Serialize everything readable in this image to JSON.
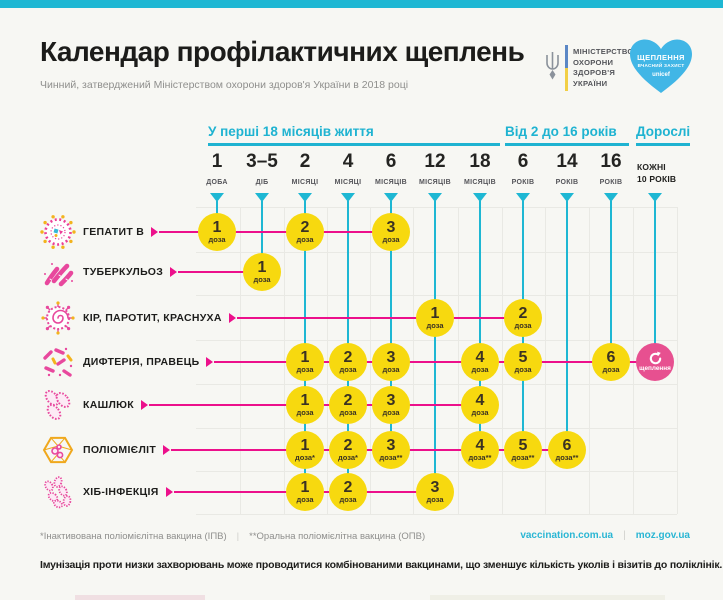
{
  "colors": {
    "cyan": "#1eb7d3",
    "magenta": "#ec108b",
    "dose_yellow": "#f7d90f",
    "booster_pink": "#e75090",
    "heart_blue": "#41b6e6"
  },
  "header": {
    "title": "Календар профілактичних щеплень",
    "subtitle": "Чинний, затверджений Міністерством охорони здоров'я України в 2018 році",
    "moh_lines": [
      "МІНІСТЕРСТВО",
      "ОХОРОНИ",
      "ЗДОРОВ'Я",
      "УКРАЇНИ"
    ],
    "heart": {
      "title": "ЩЕПЛЕННЯ",
      "subtitle": "ВЧАСНИЙ ЗАХИСТ",
      "brand": "unicef"
    }
  },
  "timeline": {
    "groups": [
      {
        "label": "У перші 18 місяців життя"
      },
      {
        "label": "Від 2 до 16 років"
      },
      {
        "label": "Дорослі"
      }
    ],
    "columns": [
      {
        "value": "1",
        "unit": "ДОБА"
      },
      {
        "value": "3–5",
        "unit": "ДІБ"
      },
      {
        "value": "2",
        "unit": "МІСЯЦІ"
      },
      {
        "value": "4",
        "unit": "МІСЯЦІ"
      },
      {
        "value": "6",
        "unit": "МІСЯЦІВ"
      },
      {
        "value": "12",
        "unit": "МІСЯЦІВ"
      },
      {
        "value": "18",
        "unit": "МІСЯЦІВ"
      },
      {
        "value": "6",
        "unit": "РОКІВ"
      },
      {
        "value": "14",
        "unit": "РОКІВ"
      },
      {
        "value": "16",
        "unit": "РОКІВ"
      },
      {
        "value": "КОЖНІ",
        "unit": "10 РОКІВ",
        "style": "text"
      }
    ]
  },
  "rows": [
    {
      "disease": "ГЕПАТИТ B",
      "icon": "hepatitis-b-virus-icon",
      "doses": [
        {
          "col": 0,
          "num": "1",
          "label": "доза"
        },
        {
          "col": 2,
          "num": "2",
          "label": "доза"
        },
        {
          "col": 4,
          "num": "3",
          "label": "доза"
        }
      ]
    },
    {
      "disease": "ТУБЕРКУЛЬОЗ",
      "icon": "tuberculosis-bacteria-icon",
      "doses": [
        {
          "col": 1,
          "num": "1",
          "label": "доза"
        }
      ]
    },
    {
      "disease": "КІР, ПАРОТИТ, КРАСНУХА",
      "icon": "measles-virus-icon",
      "doses": [
        {
          "col": 5,
          "num": "1",
          "label": "доза"
        },
        {
          "col": 7,
          "num": "2",
          "label": "доза"
        }
      ]
    },
    {
      "disease": "ДИФТЕРІЯ, ПРАВЕЦЬ",
      "icon": "diphtheria-bacteria-icon",
      "doses": [
        {
          "col": 2,
          "num": "1",
          "label": "доза"
        },
        {
          "col": 3,
          "num": "2",
          "label": "доза"
        },
        {
          "col": 4,
          "num": "3",
          "label": "доза"
        },
        {
          "col": 6,
          "num": "4",
          "label": "доза"
        },
        {
          "col": 7,
          "num": "5",
          "label": "доза"
        },
        {
          "col": 9,
          "num": "6",
          "label": "доза"
        },
        {
          "col": 10,
          "type": "booster",
          "label": "щеплення"
        }
      ]
    },
    {
      "disease": "КАШЛЮК",
      "icon": "pertussis-bacteria-icon",
      "doses": [
        {
          "col": 2,
          "num": "1",
          "label": "доза"
        },
        {
          "col": 3,
          "num": "2",
          "label": "доза"
        },
        {
          "col": 4,
          "num": "3",
          "label": "доза"
        },
        {
          "col": 6,
          "num": "4",
          "label": "доза"
        }
      ]
    },
    {
      "disease": "ПОЛІОМІЄЛІТ",
      "icon": "polio-virus-icon",
      "doses": [
        {
          "col": 2,
          "num": "1",
          "label": "доза*"
        },
        {
          "col": 3,
          "num": "2",
          "label": "доза*"
        },
        {
          "col": 4,
          "num": "3",
          "label": "доза**"
        },
        {
          "col": 6,
          "num": "4",
          "label": "доза**"
        },
        {
          "col": 7,
          "num": "5",
          "label": "доза**"
        },
        {
          "col": 8,
          "num": "6",
          "label": "доза**"
        }
      ]
    },
    {
      "disease": "ХІБ-ІНФЕКЦІЯ",
      "icon": "hib-bacteria-icon",
      "doses": [
        {
          "col": 2,
          "num": "1",
          "label": "доза"
        },
        {
          "col": 3,
          "num": "2",
          "label": "доза"
        },
        {
          "col": 5,
          "num": "3",
          "label": "доза"
        }
      ]
    }
  ],
  "footer": {
    "footnote_ipv": "*Інактивована поліомієлітна вакцина (ІПВ)",
    "footnote_opv": "**Оральна поліомієлітна вакцина (ОПВ)",
    "separator": "|",
    "links": [
      {
        "label": "vaccination.com.ua"
      },
      {
        "label": "moz.gov.ua"
      }
    ],
    "note": "Імунізація проти низки захворювань може проводитися комбінованими вакцинами, що зменшує кількість уколів і візитів до поліклінік."
  }
}
